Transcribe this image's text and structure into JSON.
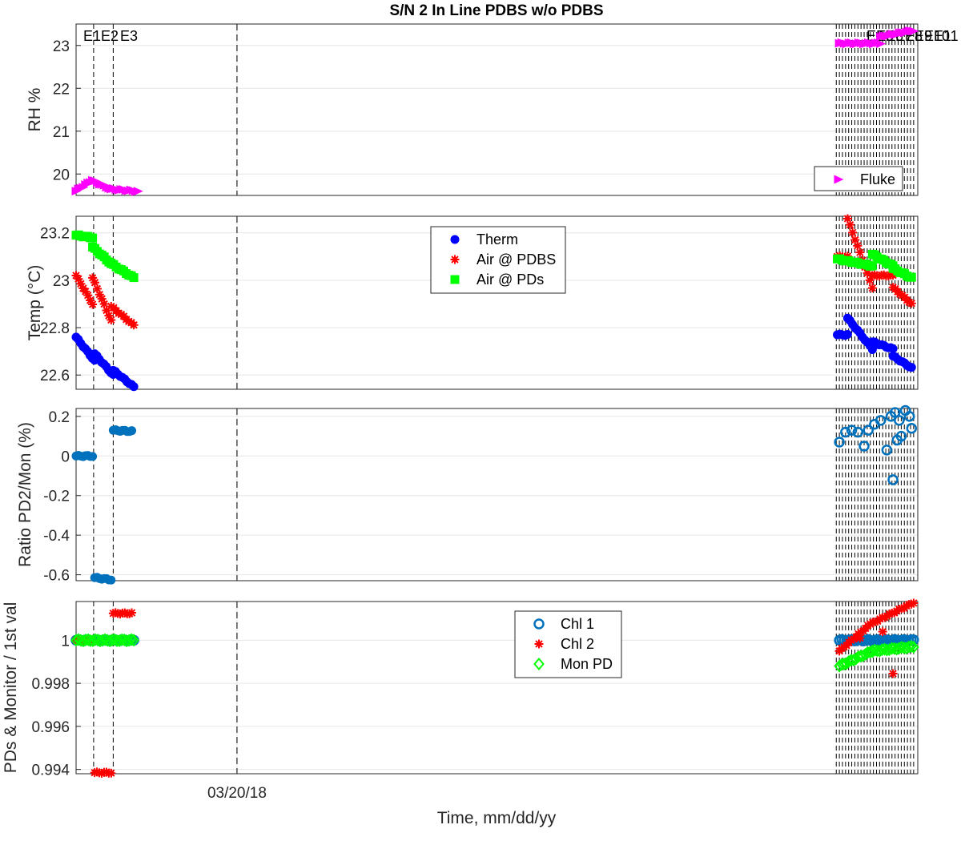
{
  "title": "S/N 2 In Line PDBS w/o PDBS",
  "xlabel": "Time, mm/dd/yy",
  "x_tick_labels": [
    "03/20/18"
  ],
  "event_labels": [
    "E1",
    "E2",
    "E3"
  ],
  "colors": {
    "fluke": "#ff00ff",
    "therm": "#0000ff",
    "air_pdbs": "#ff0000",
    "air_pds": "#00ff00",
    "chl1": "#0072bd",
    "chl2": "#ff0000",
    "mon_pd": "#00ff00",
    "grid": "#e6e6e6",
    "axis": "#262626"
  },
  "chart_data": [
    {
      "type": "scatter",
      "ylabel": "RH %",
      "ylim": [
        19.5,
        23.5
      ],
      "yticks": [
        20,
        21,
        22,
        23
      ],
      "ytick_labels": [
        "20",
        "21",
        "22",
        "23"
      ],
      "grid": true,
      "legend": "bottom-right",
      "series": [
        {
          "name": "Fluke",
          "marker": "triangle-right",
          "color": "#ff00ff",
          "segments": [
            {
              "x": [
                0.0,
                0.8
              ],
              "y": [
                19.6,
                19.85
              ]
            },
            {
              "x": [
                0.8,
                1.7
              ],
              "y": [
                19.85,
                19.65
              ]
            },
            {
              "x": [
                1.7,
                3.0
              ],
              "y": [
                19.65,
                19.6
              ]
            },
            {
              "x": [
                37.0,
                39.0
              ],
              "y": [
                23.05,
                23.05
              ]
            },
            {
              "x": [
                39.0,
                40.6
              ],
              "y": [
                23.2,
                23.35
              ]
            }
          ]
        }
      ]
    },
    {
      "type": "scatter",
      "ylabel": "Temp (°C)",
      "ylim": [
        22.54,
        23.27
      ],
      "yticks": [
        22.6,
        22.8,
        23.0,
        23.2
      ],
      "ytick_labels": [
        "22.6",
        "22.8",
        "23",
        "23.2"
      ],
      "grid": true,
      "legend": "top-center",
      "series": [
        {
          "name": "Therm",
          "marker": "circle-filled",
          "color": "#0000ff",
          "segments": [
            {
              "x": [
                0.0,
                0.9
              ],
              "y": [
                22.76,
                22.66
              ]
            },
            {
              "x": [
                0.9,
                1.8
              ],
              "y": [
                22.69,
                22.6
              ]
            },
            {
              "x": [
                1.8,
                2.8
              ],
              "y": [
                22.62,
                22.55
              ]
            },
            {
              "x": [
                36.9,
                37.4
              ],
              "y": [
                22.77,
                22.77
              ]
            },
            {
              "x": [
                37.4,
                38.6
              ],
              "y": [
                22.84,
                22.71
              ]
            },
            {
              "x": [
                38.6,
                39.6
              ],
              "y": [
                22.74,
                22.71
              ]
            },
            {
              "x": [
                39.6,
                40.5
              ],
              "y": [
                22.68,
                22.63
              ]
            }
          ]
        }
      ]
    },
    {
      "type": "scatter",
      "ylabel": "",
      "ylim": [
        22.54,
        23.27
      ],
      "yticks": [],
      "ytick_labels": [],
      "grid": false,
      "legend": "none",
      "series": [
        {
          "name": "Air @ PDBS",
          "marker": "asterisk",
          "color": "#ff0000",
          "segments": [
            {
              "x": [
                0.0,
                0.8
              ],
              "y": [
                23.02,
                22.9
              ]
            },
            {
              "x": [
                0.8,
                1.7
              ],
              "y": [
                23.01,
                22.83
              ]
            },
            {
              "x": [
                1.7,
                2.8
              ],
              "y": [
                22.89,
                22.81
              ]
            },
            {
              "x": [
                36.9,
                37.4
              ],
              "y": [
                23.1,
                23.1
              ]
            },
            {
              "x": [
                37.4,
                38.6
              ],
              "y": [
                23.26,
                22.97
              ]
            },
            {
              "x": [
                38.6,
                39.6
              ],
              "y": [
                23.02,
                23.02
              ]
            },
            {
              "x": [
                39.6,
                40.5
              ],
              "y": [
                22.97,
                22.9
              ]
            }
          ]
        },
        {
          "name": "Air @ PDs",
          "marker": "square-filled",
          "color": "#00ff00",
          "segments": [
            {
              "x": [
                0.0,
                0.8
              ],
              "y": [
                23.19,
                23.18
              ]
            },
            {
              "x": [
                0.8,
                1.7
              ],
              "y": [
                23.14,
                23.07
              ]
            },
            {
              "x": [
                1.7,
                2.8
              ],
              "y": [
                23.07,
                23.01
              ]
            },
            {
              "x": [
                36.9,
                38.6
              ],
              "y": [
                23.09,
                23.06
              ]
            },
            {
              "x": [
                38.6,
                39.6
              ],
              "y": [
                23.11,
                23.06
              ]
            },
            {
              "x": [
                39.6,
                40.5
              ],
              "y": [
                23.05,
                23.01
              ]
            }
          ]
        }
      ]
    },
    {
      "type": "scatter",
      "ylabel": "Ratio PD2/Mon (%)",
      "ylim": [
        -0.63,
        0.24
      ],
      "yticks": [
        -0.6,
        -0.4,
        -0.2,
        0.0,
        0.2
      ],
      "ytick_labels": [
        "-0.6",
        "-0.4",
        "-0.2",
        "0",
        "0.2"
      ],
      "grid": true,
      "legend": "none",
      "series": [
        {
          "name": "",
          "marker": "circle-filled",
          "color": "#0072bd",
          "segments": [
            {
              "x": [
                0.0,
                0.8
              ],
              "y": [
                0.0,
                0.0
              ]
            },
            {
              "x": [
                0.9,
                1.7
              ],
              "y": [
                -0.615,
                -0.625
              ]
            },
            {
              "x": [
                1.8,
                2.7
              ],
              "y": [
                0.13,
                0.125
              ]
            }
          ]
        },
        {
          "name": "",
          "marker": "circle-open",
          "color": "#0072bd",
          "points": [
            [
              37.0,
              0.07
            ],
            [
              37.3,
              0.12
            ],
            [
              37.6,
              0.13
            ],
            [
              37.9,
              0.12
            ],
            [
              38.2,
              0.05
            ],
            [
              38.4,
              0.13
            ],
            [
              38.7,
              0.16
            ],
            [
              39.0,
              0.18
            ],
            [
              39.3,
              0.03
            ],
            [
              39.5,
              0.2
            ],
            [
              39.7,
              0.22
            ],
            [
              39.9,
              0.18
            ],
            [
              40.0,
              0.1
            ],
            [
              40.2,
              0.23
            ],
            [
              40.4,
              0.2
            ],
            [
              40.5,
              0.14
            ],
            [
              39.6,
              -0.12
            ],
            [
              39.8,
              0.08
            ]
          ]
        }
      ]
    },
    {
      "type": "scatter",
      "ylabel": "PDs & Monitor / 1st val",
      "ylim": [
        0.9938,
        1.0018
      ],
      "yticks": [
        0.994,
        0.996,
        0.998,
        1.0
      ],
      "ytick_labels": [
        "0.994",
        "0.996",
        "0.998",
        "1"
      ],
      "grid": true,
      "legend": "top-center",
      "series": [
        {
          "name": "Chl 1",
          "marker": "circle-open",
          "color": "#0072bd",
          "segments": [
            {
              "x": [
                0.0,
                2.8
              ],
              "y": [
                1.0,
                1.0
              ]
            },
            {
              "x": [
                37.0,
                40.6
              ],
              "y": [
                1.0,
                1.0
              ]
            }
          ]
        },
        {
          "name": "Chl 2",
          "marker": "asterisk",
          "color": "#ff0000",
          "segments": [
            {
              "x": [
                0.0,
                0.8
              ],
              "y": [
                1.0,
                1.0
              ]
            },
            {
              "x": [
                0.9,
                1.7
              ],
              "y": [
                0.99385,
                0.99385
              ]
            },
            {
              "x": [
                1.8,
                2.7
              ],
              "y": [
                1.00125,
                1.00125
              ]
            },
            {
              "x": [
                37.0,
                38.5
              ],
              "y": [
                0.9995,
                1.00075
              ]
            },
            {
              "x": [
                38.5,
                40.6
              ],
              "y": [
                1.00075,
                1.00175
              ]
            }
          ],
          "points": [
            [
              39.6,
              0.99845
            ],
            [
              38.0,
              1.0001
            ],
            [
              39.1,
              1.0004
            ]
          ]
        },
        {
          "name": "Mon PD",
          "marker": "diamond-open",
          "color": "#00ff00",
          "segments": [
            {
              "x": [
                0.0,
                2.8
              ],
              "y": [
                1.0,
                1.0
              ]
            },
            {
              "x": [
                37.0,
                38.6
              ],
              "y": [
                0.9988,
                0.9995
              ]
            },
            {
              "x": [
                38.6,
                40.6
              ],
              "y": [
                0.9995,
                0.9997
              ]
            }
          ]
        }
      ]
    }
  ],
  "x_axis": {
    "xlim": [
      0,
      40.8
    ],
    "xticks": [
      7.8
    ],
    "event_lines_left": [
      0.0,
      0.85,
      1.8
    ],
    "event_lines_right": [
      36.85,
      37.0,
      37.15,
      37.3,
      37.45,
      37.6,
      37.75,
      37.9,
      38.05,
      38.2,
      38.35,
      38.5,
      38.65,
      38.8,
      38.95,
      39.1,
      39.25,
      39.4,
      39.55,
      39.7,
      39.85,
      40.0,
      40.15,
      40.3,
      40.45,
      40.6
    ]
  }
}
